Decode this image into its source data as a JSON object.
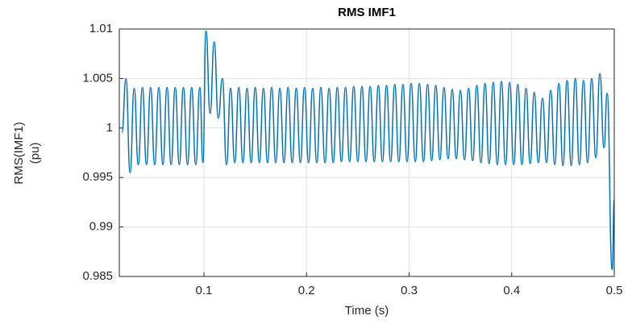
{
  "chart_data": {
    "type": "line",
    "title": "RMS IMF1",
    "xlabel": "Time (s)",
    "ylabel": [
      "RMS(IMF1)",
      "(pu)"
    ],
    "x": [
      0.02,
      0.024,
      0.028,
      0.032,
      0.036,
      0.04,
      0.044,
      0.048,
      0.052,
      0.056,
      0.06,
      0.064,
      0.068,
      0.072,
      0.076,
      0.08,
      0.084,
      0.088,
      0.092,
      0.096,
      0.099,
      0.102,
      0.106,
      0.11,
      0.114,
      0.118,
      0.122,
      0.126,
      0.13,
      0.134,
      0.138,
      0.142,
      0.146,
      0.15,
      0.154,
      0.158,
      0.162,
      0.166,
      0.17,
      0.174,
      0.178,
      0.182,
      0.186,
      0.19,
      0.194,
      0.198,
      0.202,
      0.206,
      0.21,
      0.214,
      0.218,
      0.222,
      0.226,
      0.23,
      0.234,
      0.238,
      0.242,
      0.246,
      0.25,
      0.254,
      0.258,
      0.262,
      0.266,
      0.27,
      0.274,
      0.278,
      0.282,
      0.286,
      0.29,
      0.294,
      0.298,
      0.302,
      0.306,
      0.31,
      0.314,
      0.318,
      0.322,
      0.326,
      0.33,
      0.334,
      0.338,
      0.342,
      0.346,
      0.35,
      0.354,
      0.358,
      0.362,
      0.366,
      0.37,
      0.374,
      0.378,
      0.382,
      0.386,
      0.39,
      0.394,
      0.398,
      0.402,
      0.406,
      0.41,
      0.414,
      0.418,
      0.422,
      0.426,
      0.43,
      0.434,
      0.438,
      0.442,
      0.446,
      0.45,
      0.454,
      0.458,
      0.462,
      0.466,
      0.47,
      0.474,
      0.478,
      0.482,
      0.486,
      0.49,
      0.493,
      0.498,
      0.5
    ],
    "values": [
      0.9995,
      1.005,
      0.9955,
      1.004,
      0.9963,
      1.0041,
      0.9963,
      1.0041,
      0.9963,
      1.0041,
      0.9963,
      1.0041,
      0.9963,
      1.0041,
      0.9963,
      1.0041,
      0.9963,
      1.0041,
      0.9963,
      1.0041,
      0.9965,
      1.0098,
      1.0015,
      1.0087,
      1.001,
      1.005,
      0.9963,
      1.004,
      0.9965,
      1.0041,
      0.9965,
      1.004,
      0.9965,
      1.0041,
      0.9965,
      1.004,
      0.9965,
      1.0041,
      0.9965,
      1.004,
      0.9965,
      1.0041,
      0.9965,
      1.004,
      0.9965,
      1.0041,
      0.9965,
      1.004,
      0.9965,
      1.0041,
      0.9965,
      1.004,
      0.9965,
      1.0041,
      0.9966,
      1.0041,
      0.9966,
      1.0042,
      0.9966,
      1.0042,
      0.9966,
      1.0042,
      0.9966,
      1.0043,
      0.9966,
      1.0043,
      0.9966,
      1.0044,
      0.9966,
      1.0044,
      0.9966,
      1.0045,
      0.9966,
      1.0045,
      0.9966,
      1.0044,
      0.9967,
      1.0043,
      0.9968,
      1.0041,
      0.9969,
      1.0039,
      0.9969,
      1.0038,
      0.9968,
      1.004,
      0.9967,
      1.0043,
      0.9965,
      1.0045,
      0.9964,
      1.0046,
      0.9963,
      1.0047,
      0.9963,
      1.0046,
      0.9963,
      1.0044,
      0.9963,
      1.004,
      0.9964,
      1.0036,
      0.9965,
      1.003,
      0.9965,
      1.0038,
      0.9963,
      1.0045,
      0.9962,
      1.0048,
      0.9962,
      1.005,
      0.9963,
      1.0048,
      0.9965,
      1.005,
      0.997,
      1.0055,
      0.998,
      1.0035,
      0.9857,
      0.9928
    ],
    "color": "#0072bd",
    "xlim": [
      0.0175,
      0.5
    ],
    "xticks": [
      0.1,
      0.2,
      0.3,
      0.4,
      0.5
    ],
    "ylim": [
      0.985,
      1.01
    ],
    "yticks": [
      0.985,
      0.99,
      0.995,
      1,
      1.005,
      1.01
    ],
    "grid": true
  }
}
